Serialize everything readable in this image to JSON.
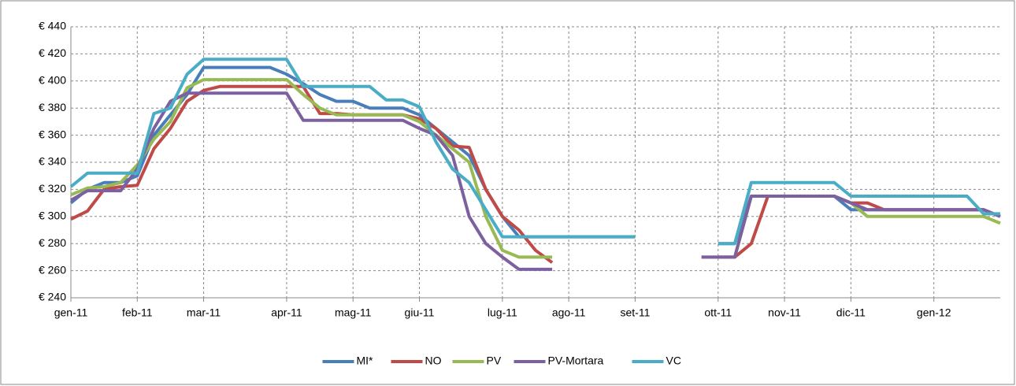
{
  "chart_data": {
    "type": "line",
    "categories": [
      "gen-11",
      null,
      null,
      null,
      "feb-11",
      null,
      null,
      null,
      "mar-11",
      null,
      null,
      null,
      null,
      "apr-11",
      null,
      null,
      null,
      "mag-11",
      null,
      null,
      null,
      "giu-11",
      null,
      null,
      null,
      null,
      "lug-11",
      null,
      null,
      null,
      "ago-11",
      null,
      null,
      null,
      "set-11",
      null,
      null,
      null,
      null,
      "ott-11",
      null,
      null,
      null,
      "nov-11",
      null,
      null,
      null,
      "dic-11",
      null,
      null,
      null,
      null,
      "gen-12",
      null,
      null,
      null,
      null
    ],
    "series": [
      {
        "name": "MI*",
        "color": "#4a7ebb",
        "values": [
          310,
          320,
          325,
          325,
          330,
          360,
          375,
          390,
          410,
          410,
          410,
          410,
          410,
          405,
          398,
          390,
          385,
          385,
          380,
          380,
          380,
          375,
          365,
          355,
          345,
          320,
          300,
          285,
          285,
          285,
          285,
          285,
          285,
          285,
          285,
          null,
          null,
          null,
          null,
          280,
          280,
          315,
          315,
          315,
          315,
          315,
          315,
          305,
          305,
          305,
          305,
          305,
          305,
          305,
          305,
          305,
          300
        ]
      },
      {
        "name": "NO",
        "color": "#be4b48",
        "values": [
          298,
          304,
          320,
          322,
          323,
          350,
          365,
          385,
          393,
          396,
          396,
          396,
          396,
          396,
          396,
          376,
          376,
          375,
          375,
          375,
          375,
          372,
          365,
          352,
          351,
          320,
          300,
          290,
          275,
          266,
          null,
          null,
          null,
          null,
          null,
          null,
          null,
          null,
          null,
          270,
          270,
          280,
          315,
          315,
          315,
          315,
          315,
          310,
          310,
          305,
          305,
          305,
          305,
          305,
          305,
          305,
          300
        ]
      },
      {
        "name": "PV",
        "color": "#98b954",
        "values": [
          316,
          321,
          322,
          325,
          338,
          357,
          370,
          395,
          401,
          401,
          401,
          401,
          401,
          401,
          390,
          380,
          375,
          375,
          375,
          375,
          375,
          370,
          360,
          350,
          340,
          300,
          275,
          270,
          270,
          270,
          null,
          null,
          null,
          null,
          null,
          null,
          null,
          null,
          270,
          270,
          270,
          315,
          315,
          315,
          315,
          315,
          315,
          310,
          300,
          300,
          300,
          300,
          300,
          300,
          300,
          300,
          295
        ]
      },
      {
        "name": "PV-Mortara",
        "color": "#7d60a0",
        "values": [
          312,
          319,
          319,
          319,
          335,
          365,
          385,
          391,
          391,
          391,
          391,
          391,
          391,
          391,
          371,
          371,
          371,
          371,
          371,
          371,
          371,
          365,
          360,
          345,
          300,
          280,
          270,
          261,
          261,
          261,
          null,
          null,
          null,
          null,
          null,
          null,
          null,
          null,
          270,
          270,
          270,
          315,
          315,
          315,
          315,
          315,
          315,
          310,
          305,
          305,
          305,
          305,
          305,
          305,
          305,
          305,
          300
        ]
      },
      {
        "name": "VC",
        "color": "#4bacc6",
        "values": [
          322,
          332,
          332,
          332,
          332,
          376,
          380,
          405,
          416,
          416,
          416,
          416,
          416,
          416,
          396,
          396,
          396,
          396,
          396,
          386,
          386,
          381,
          355,
          335,
          325,
          305,
          285,
          285,
          285,
          285,
          285,
          285,
          285,
          285,
          285,
          null,
          null,
          null,
          null,
          280,
          280,
          325,
          325,
          325,
          325,
          325,
          325,
          315,
          315,
          315,
          315,
          315,
          315,
          315,
          315,
          302,
          302
        ]
      }
    ],
    "ylim": [
      240,
      440
    ],
    "yticks": [
      {
        "value": 240,
        "label": "€ 240"
      },
      {
        "value": 260,
        "label": "€ 260"
      },
      {
        "value": 280,
        "label": "€ 280"
      },
      {
        "value": 300,
        "label": "€ 300"
      },
      {
        "value": 320,
        "label": "€ 320"
      },
      {
        "value": 340,
        "label": "€ 340"
      },
      {
        "value": 360,
        "label": "€ 360"
      },
      {
        "value": 380,
        "label": "€ 380"
      },
      {
        "value": 400,
        "label": "€ 400"
      },
      {
        "value": 420,
        "label": "€ 420"
      },
      {
        "value": 440,
        "label": "€ 440"
      }
    ],
    "grid": true,
    "legend": "bottom"
  }
}
